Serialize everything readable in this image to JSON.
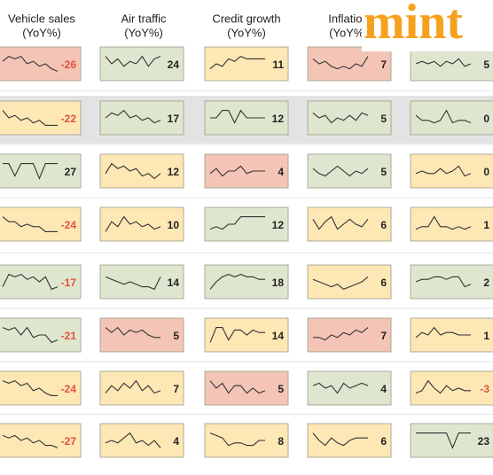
{
  "chart_data": {
    "type": "sparkline-grid",
    "columns": [
      {
        "title": "Vehicle sales",
        "unit": "(YoY%)"
      },
      {
        "title": "Air traffic",
        "unit": "(YoY%)"
      },
      {
        "title": "Credit growth",
        "unit": "(YoY%)"
      },
      {
        "title": "Inflation",
        "unit": "(YoY%)"
      },
      {}
    ],
    "trend_ylim": [
      0,
      10
    ],
    "rows": [
      [
        {
          "value": -26,
          "color": "#f4c5b6",
          "trend": [
            6,
            8,
            7,
            8,
            5,
            6,
            4,
            5,
            3,
            2
          ]
        },
        {
          "value": 24,
          "color": "#dfe6cf",
          "trend": [
            8,
            5,
            7,
            4,
            6,
            5,
            8,
            4,
            7,
            8
          ]
        },
        {
          "value": 11,
          "color": "#fde7b5",
          "trend": [
            3,
            5,
            4,
            7,
            6,
            8,
            7,
            7,
            7,
            7
          ]
        },
        {
          "value": 7,
          "color": "#f4c5b6",
          "trend": [
            7,
            5,
            6,
            4,
            3,
            4,
            3,
            5,
            4,
            8
          ]
        },
        {
          "value": 5,
          "color": "#dfe6cf",
          "trend": [
            5,
            6,
            5,
            6,
            4,
            6,
            5,
            7,
            4,
            5
          ]
        }
      ],
      [
        {
          "value": -22,
          "color": "#fde7b5",
          "trend": [
            8,
            5,
            6,
            4,
            5,
            3,
            4,
            2,
            2,
            2
          ]
        },
        {
          "value": 17,
          "color": "#dfe6cf",
          "trend": [
            5,
            7,
            6,
            8,
            5,
            6,
            4,
            5,
            3,
            4
          ]
        },
        {
          "value": 12,
          "color": "#dfe6cf",
          "trend": [
            5,
            5,
            8,
            8,
            3,
            8,
            5,
            5,
            5,
            5
          ]
        },
        {
          "value": 5,
          "color": "#dfe6cf",
          "trend": [
            7,
            5,
            6,
            3,
            5,
            4,
            6,
            4,
            7,
            6
          ]
        },
        {
          "value": 0,
          "color": "#dfe6cf",
          "trend": [
            6,
            4,
            4,
            3,
            4,
            8,
            3,
            4,
            4,
            3
          ]
        }
      ],
      [
        {
          "value": 27,
          "color": "#dfe6cf",
          "trend": [
            8,
            8,
            3,
            8,
            8,
            8,
            2,
            8,
            8,
            8
          ]
        },
        {
          "value": 12,
          "color": "#fde7b5",
          "trend": [
            4,
            8,
            6,
            7,
            5,
            6,
            3,
            4,
            2,
            4
          ]
        },
        {
          "value": 4,
          "color": "#f4c5b6",
          "trend": [
            4,
            6,
            3,
            5,
            5,
            7,
            4,
            5,
            5,
            5
          ]
        },
        {
          "value": 5,
          "color": "#dfe6cf",
          "trend": [
            6,
            4,
            3,
            5,
            7,
            5,
            3,
            5,
            4,
            6
          ]
        },
        {
          "value": 0,
          "color": "#fde7b5",
          "trend": [
            4,
            5,
            4,
            4,
            6,
            4,
            5,
            7,
            3,
            4
          ]
        }
      ],
      [
        {
          "value": -24,
          "color": "#fde7b5",
          "trend": [
            8,
            6,
            6,
            4,
            5,
            4,
            4,
            2,
            2,
            2
          ]
        },
        {
          "value": 10,
          "color": "#fde7b5",
          "trend": [
            2,
            6,
            4,
            8,
            5,
            6,
            4,
            5,
            3,
            4
          ]
        },
        {
          "value": 12,
          "color": "#dfe6cf",
          "trend": [
            3,
            4,
            3,
            5,
            5,
            8,
            8,
            8,
            8,
            8
          ]
        },
        {
          "value": 6,
          "color": "#fde7b5",
          "trend": [
            7,
            3,
            6,
            8,
            3,
            5,
            7,
            5,
            4,
            7
          ]
        },
        {
          "value": 1,
          "color": "#fde7b5",
          "trend": [
            3,
            4,
            4,
            8,
            4,
            4,
            3,
            4,
            3,
            4
          ]
        }
      ],
      [
        {
          "value": -17,
          "color": "#dfe6cf",
          "trend": [
            3,
            8,
            7,
            8,
            6,
            7,
            5,
            7,
            2,
            3
          ]
        },
        {
          "value": 14,
          "color": "#dfe6cf",
          "trend": [
            7,
            6,
            5,
            4,
            5,
            4,
            3,
            3,
            2,
            7
          ]
        },
        {
          "value": 18,
          "color": "#dfe6cf",
          "trend": [
            2,
            5,
            7,
            8,
            7,
            8,
            7,
            7,
            6,
            6
          ]
        },
        {
          "value": 6,
          "color": "#fde7b5",
          "trend": [
            6,
            5,
            4,
            3,
            4,
            2,
            3,
            4,
            5,
            7
          ]
        },
        {
          "value": 2,
          "color": "#dfe6cf",
          "trend": [
            5,
            6,
            6,
            7,
            7,
            6,
            7,
            7,
            3,
            4
          ]
        }
      ],
      [
        {
          "value": -21,
          "color": "#dfe6cf",
          "trend": [
            8,
            7,
            8,
            5,
            8,
            4,
            5,
            5,
            2,
            3
          ]
        },
        {
          "value": 5,
          "color": "#f4c5b6",
          "trend": [
            8,
            6,
            8,
            5,
            7,
            6,
            7,
            5,
            4,
            4
          ]
        },
        {
          "value": 14,
          "color": "#fde7b5",
          "trend": [
            2,
            8,
            8,
            3,
            7,
            7,
            5,
            7,
            6,
            6
          ]
        },
        {
          "value": 7,
          "color": "#f4c5b6",
          "trend": [
            4,
            4,
            3,
            5,
            4,
            6,
            5,
            7,
            6,
            8
          ]
        },
        {
          "value": 1,
          "color": "#fde7b5",
          "trend": [
            4,
            6,
            5,
            8,
            5,
            6,
            6,
            5,
            5,
            5
          ]
        }
      ],
      [
        {
          "value": -24,
          "color": "#fde7b5",
          "trend": [
            8,
            7,
            8,
            6,
            7,
            4,
            5,
            3,
            2,
            2
          ]
        },
        {
          "value": 7,
          "color": "#fde7b5",
          "trend": [
            3,
            6,
            4,
            7,
            5,
            8,
            4,
            6,
            3,
            4
          ]
        },
        {
          "value": 5,
          "color": "#f4c5b6",
          "trend": [
            8,
            5,
            7,
            3,
            6,
            6,
            3,
            5,
            3,
            4
          ]
        },
        {
          "value": 4,
          "color": "#dfe6cf",
          "trend": [
            6,
            7,
            5,
            6,
            3,
            7,
            5,
            6,
            7,
            6
          ]
        },
        {
          "value": -3,
          "color": "#fde7b5",
          "trend": [
            3,
            4,
            8,
            5,
            3,
            6,
            4,
            5,
            4,
            4
          ]
        }
      ],
      [
        {
          "value": -27,
          "color": "#fde7b5",
          "trend": [
            7,
            6,
            7,
            5,
            6,
            4,
            5,
            3,
            3,
            2
          ]
        },
        {
          "value": 4,
          "color": "#fde7b5",
          "trend": [
            4,
            5,
            4,
            6,
            8,
            4,
            5,
            3,
            5,
            2
          ]
        },
        {
          "value": 8,
          "color": "#fde7b5",
          "trend": [
            8,
            7,
            6,
            3,
            4,
            4,
            3,
            3,
            5,
            5
          ]
        },
        {
          "value": 6,
          "color": "#fde7b5",
          "trend": [
            8,
            5,
            3,
            6,
            4,
            3,
            5,
            6,
            6,
            6
          ]
        },
        {
          "value": 23,
          "color": "#dfe6cf",
          "trend": [
            8,
            8,
            8,
            8,
            8,
            8,
            2,
            8,
            8,
            8
          ]
        }
      ]
    ]
  },
  "logo": "mint"
}
